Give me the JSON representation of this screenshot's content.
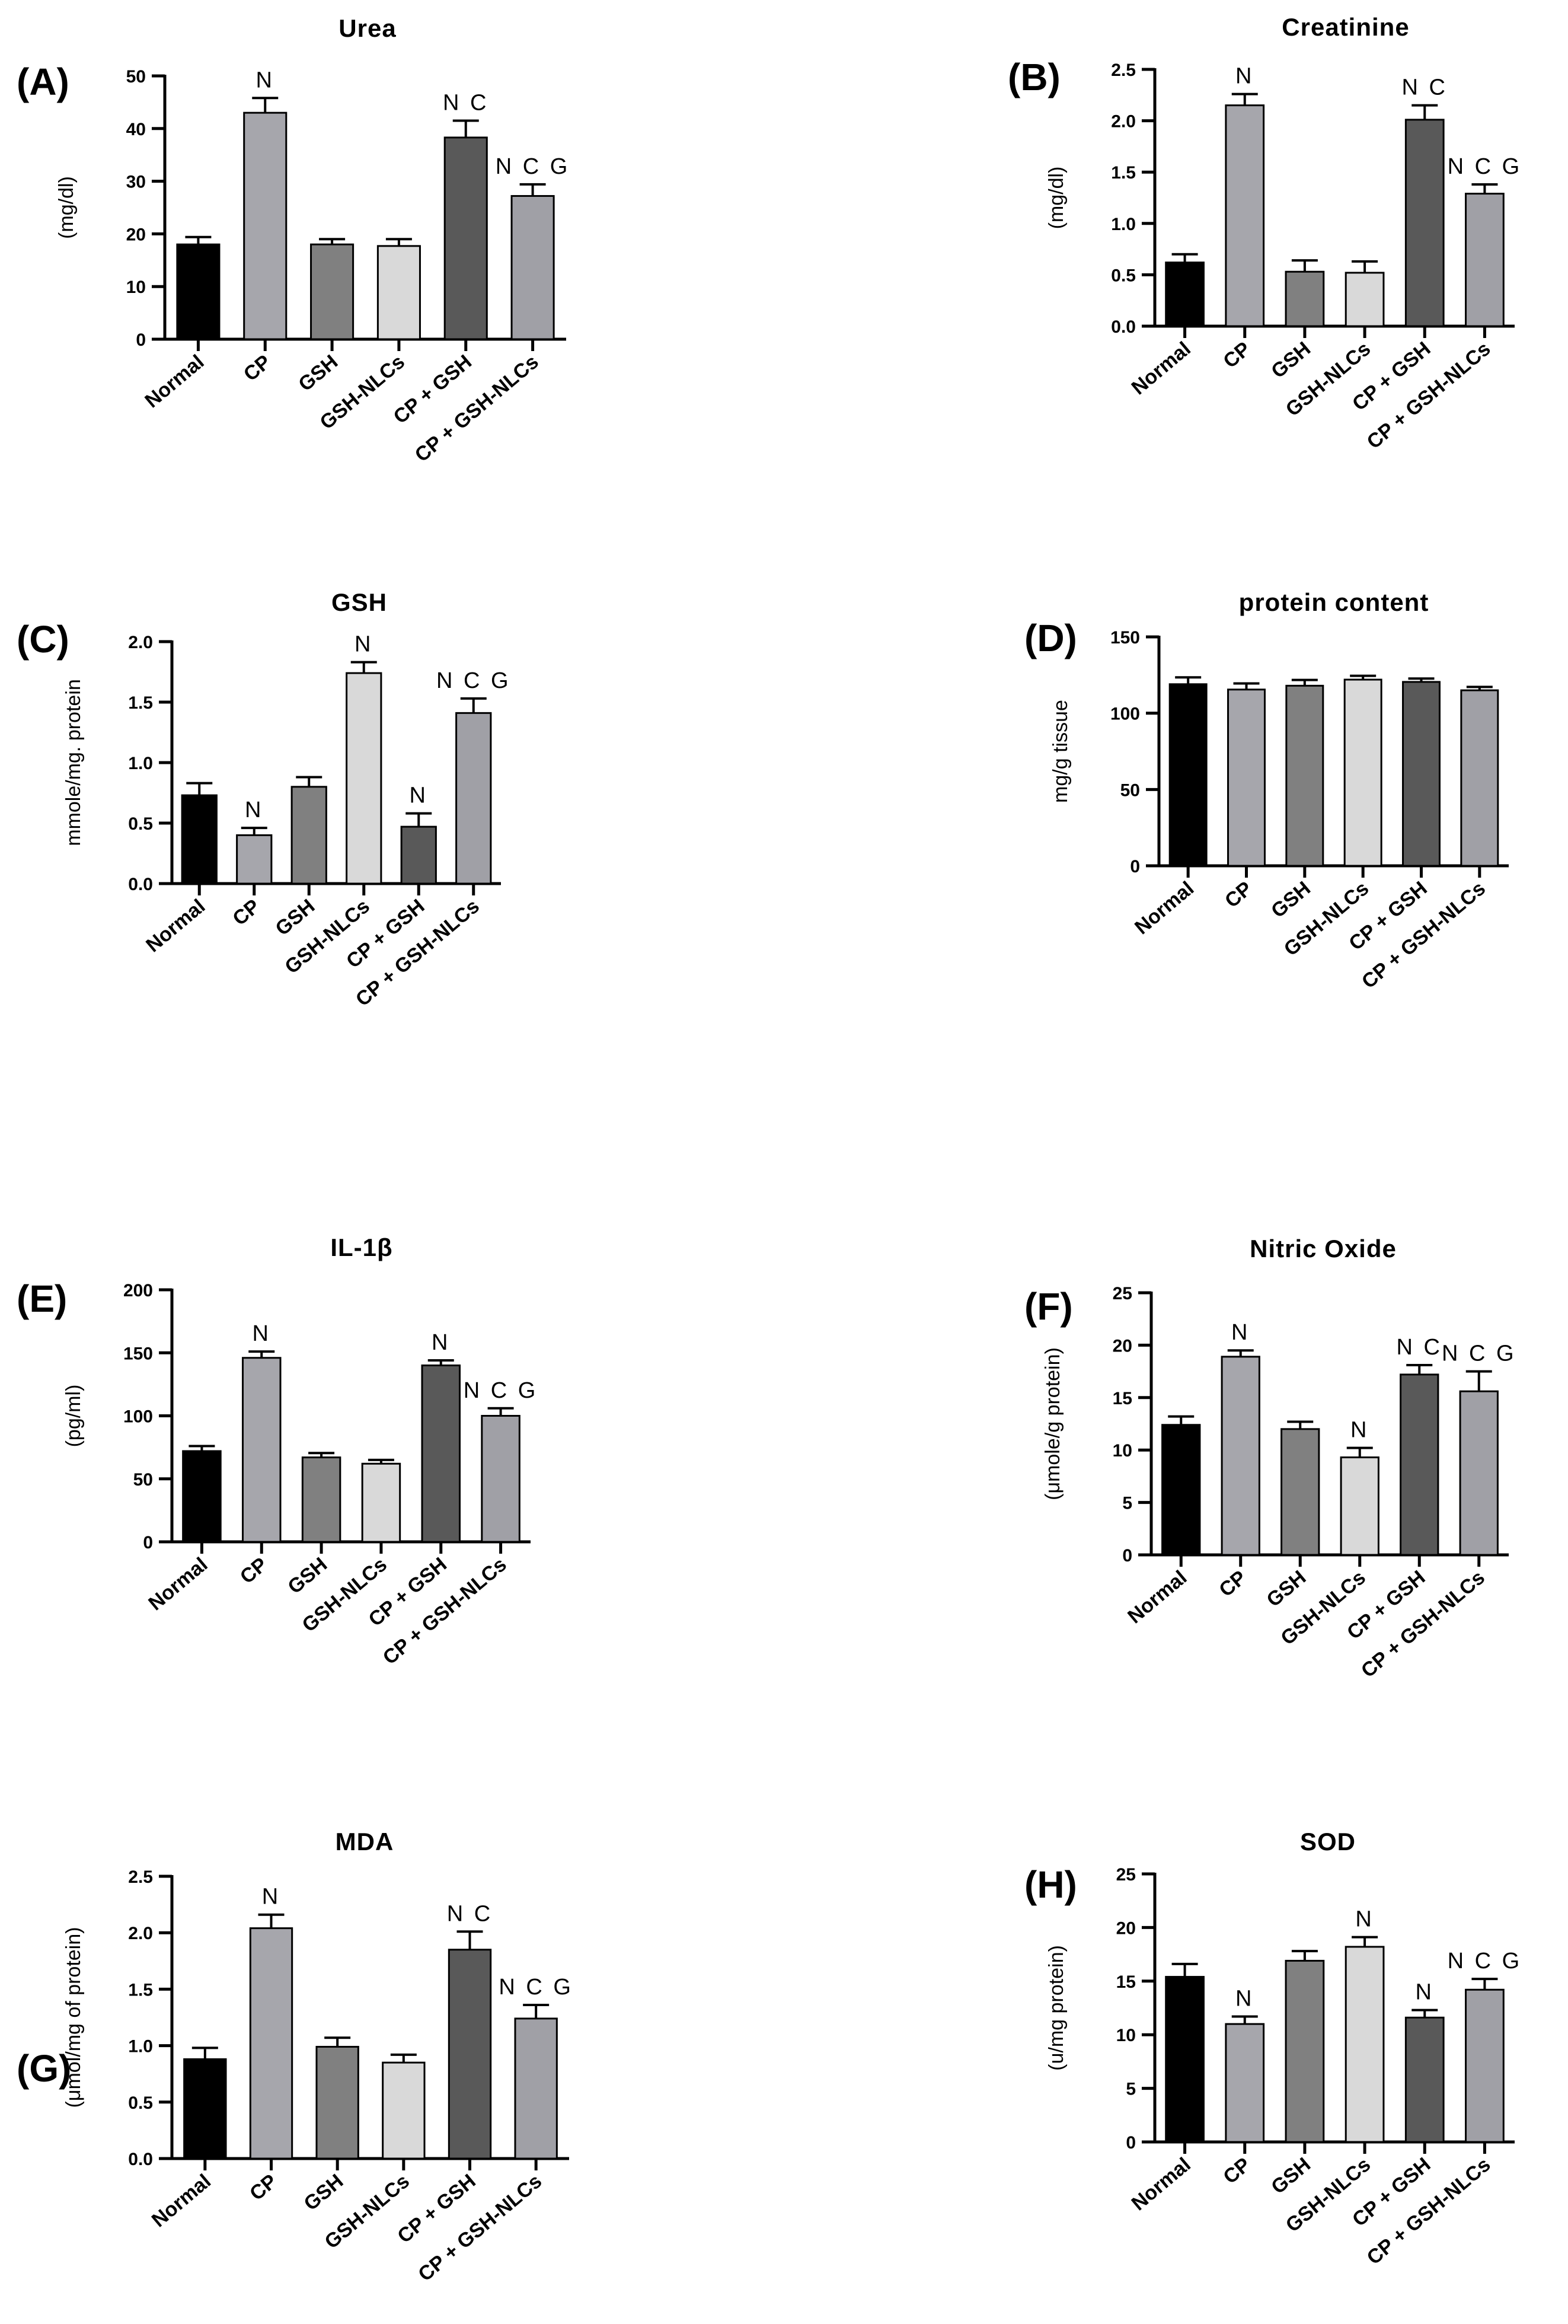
{
  "categories": [
    "Normal",
    "CP",
    "GSH",
    "GSH-NLCs",
    "CP + GSH",
    "CP + GSH-NLCs"
  ],
  "colors": [
    "#000000",
    "#a6a6ac",
    "#808080",
    "#d9d9d9",
    "#595959",
    "#a0a0a6"
  ],
  "chart_data": [
    {
      "panel": "(A)",
      "type": "bar",
      "title": "Urea",
      "ylabel": "(mg/dl)",
      "categories": [
        "Normal",
        "CP",
        "GSH",
        "GSH-NLCs",
        "CP + GSH",
        "CP + GSH-NLCs"
      ],
      "values": [
        18,
        43,
        18,
        17.7,
        38.3,
        27.2
      ],
      "errors": [
        1.4,
        2.8,
        1,
        1.3,
        3.2,
        2.2
      ],
      "significance": [
        "",
        "N",
        "",
        "",
        "N C",
        "N C G"
      ],
      "yticks": [
        0,
        10,
        20,
        30,
        40,
        50
      ],
      "ytick_labels": [
        "0",
        "10",
        "20",
        "30",
        "40",
        "50"
      ],
      "ylim": [
        0,
        50
      ]
    },
    {
      "panel": "(B)",
      "type": "bar",
      "title": "Creatinine",
      "ylabel": "(mg/dl)",
      "categories": [
        "Normal",
        "CP",
        "GSH",
        "GSH-NLCs",
        "CP + GSH",
        "CP + GSH-NLCs"
      ],
      "values": [
        0.62,
        2.15,
        0.53,
        0.52,
        2.01,
        1.29
      ],
      "errors": [
        0.08,
        0.11,
        0.11,
        0.11,
        0.14,
        0.09
      ],
      "significance": [
        "",
        "N",
        "",
        "",
        "N C",
        "N C G"
      ],
      "yticks": [
        0,
        0.5,
        1,
        1.5,
        2,
        2.5
      ],
      "ytick_labels": [
        "0.0",
        "0.5",
        "1.0",
        "1.5",
        "2.0",
        "2.5"
      ],
      "ylim": [
        0,
        2.5
      ]
    },
    {
      "panel": "(C)",
      "type": "bar",
      "title": "GSH",
      "ylabel": "mmole/mg. protein",
      "categories": [
        "Normal",
        "CP",
        "GSH",
        "GSH-NLCs",
        "CP + GSH",
        "CP + GSH-NLCs"
      ],
      "values": [
        0.73,
        0.4,
        0.8,
        1.74,
        0.47,
        1.41
      ],
      "errors": [
        0.1,
        0.06,
        0.08,
        0.09,
        0.11,
        0.12
      ],
      "significance": [
        "",
        "N",
        "",
        "N",
        "N",
        "N C G"
      ],
      "yticks": [
        0,
        0.5,
        1,
        1.5,
        2
      ],
      "ytick_labels": [
        "0.0",
        "0.5",
        "1.0",
        "1.5",
        "2.0"
      ],
      "ylim": [
        0,
        2
      ]
    },
    {
      "panel": "(D)",
      "type": "bar",
      "title": "protein content",
      "ylabel": "mg/g tissue",
      "categories": [
        "Normal",
        "CP",
        "GSH",
        "GSH-NLCs",
        "CP + GSH",
        "CP + GSH-NLCs"
      ],
      "values": [
        119,
        115.5,
        118,
        122,
        120.5,
        115
      ],
      "errors": [
        4.5,
        4,
        3.8,
        2.5,
        2.2,
        2.2
      ],
      "significance": [
        "",
        "",
        "",
        "",
        "",
        ""
      ],
      "yticks": [
        0,
        50,
        100,
        150
      ],
      "ytick_labels": [
        "0",
        "50",
        "100",
        "150"
      ],
      "ylim": [
        0,
        150
      ]
    },
    {
      "panel": "(E)",
      "type": "bar",
      "title": "IL-1β",
      "ylabel": "(pg/ml)",
      "categories": [
        "Normal",
        "CP",
        "GSH",
        "GSH-NLCs",
        "CP + GSH",
        "CP + GSH-NLCs"
      ],
      "values": [
        72,
        146,
        67,
        62,
        140,
        100
      ],
      "errors": [
        4,
        5,
        3.5,
        3,
        4,
        6
      ],
      "significance": [
        "",
        "N",
        "",
        "",
        "N",
        "N C G"
      ],
      "yticks": [
        0,
        50,
        100,
        150,
        200
      ],
      "ytick_labels": [
        "0",
        "50",
        "100",
        "150",
        "200"
      ],
      "ylim": [
        0,
        200
      ]
    },
    {
      "panel": "(F)",
      "type": "bar",
      "title": "Nitric Oxide",
      "ylabel": "(μmole/g protein)",
      "categories": [
        "Normal",
        "CP",
        "GSH",
        "GSH-NLCs",
        "CP + GSH",
        "CP + GSH-NLCs"
      ],
      "values": [
        12.4,
        18.9,
        12,
        9.3,
        17.2,
        15.6
      ],
      "errors": [
        0.8,
        0.6,
        0.7,
        0.9,
        0.9,
        1.9
      ],
      "significance": [
        "",
        "N",
        "",
        "N",
        "N C",
        "N C G"
      ],
      "yticks": [
        0,
        5,
        10,
        15,
        20,
        25
      ],
      "ytick_labels": [
        "0",
        "5",
        "10",
        "15",
        "20",
        "25"
      ],
      "ylim": [
        0,
        25
      ]
    },
    {
      "panel": "(G)",
      "type": "bar",
      "title": "MDA",
      "ylabel": "(μmol/mg of protein)",
      "categories": [
        "Normal",
        "CP",
        "GSH",
        "GSH-NLCs",
        "CP + GSH",
        "CP + GSH-NLCs"
      ],
      "values": [
        0.88,
        2.04,
        0.99,
        0.85,
        1.85,
        1.24
      ],
      "errors": [
        0.1,
        0.12,
        0.08,
        0.07,
        0.16,
        0.12
      ],
      "significance": [
        "",
        "N",
        "",
        "",
        "N C",
        "N C G"
      ],
      "yticks": [
        0,
        0.5,
        1,
        1.5,
        2,
        2.5
      ],
      "ytick_labels": [
        "0.0",
        "0.5",
        "1.0",
        "1.5",
        "2.0",
        "2.5"
      ],
      "ylim": [
        0,
        2.5
      ]
    },
    {
      "panel": "(H)",
      "type": "bar",
      "title": "SOD",
      "ylabel": "(u/mg protein)",
      "categories": [
        "Normal",
        "CP",
        "GSH",
        "GSH-NLCs",
        "CP + GSH",
        "CP + GSH-NLCs"
      ],
      "values": [
        15.4,
        11,
        16.9,
        18.2,
        11.6,
        14.2
      ],
      "errors": [
        1.2,
        0.7,
        0.9,
        0.9,
        0.7,
        1
      ],
      "significance": [
        "",
        "N",
        "",
        "N",
        "N",
        "N C G"
      ],
      "yticks": [
        0,
        5,
        10,
        15,
        20,
        25
      ],
      "ytick_labels": [
        "0",
        "5",
        "10",
        "15",
        "20",
        "25"
      ],
      "ylim": [
        0,
        25
      ]
    }
  ]
}
